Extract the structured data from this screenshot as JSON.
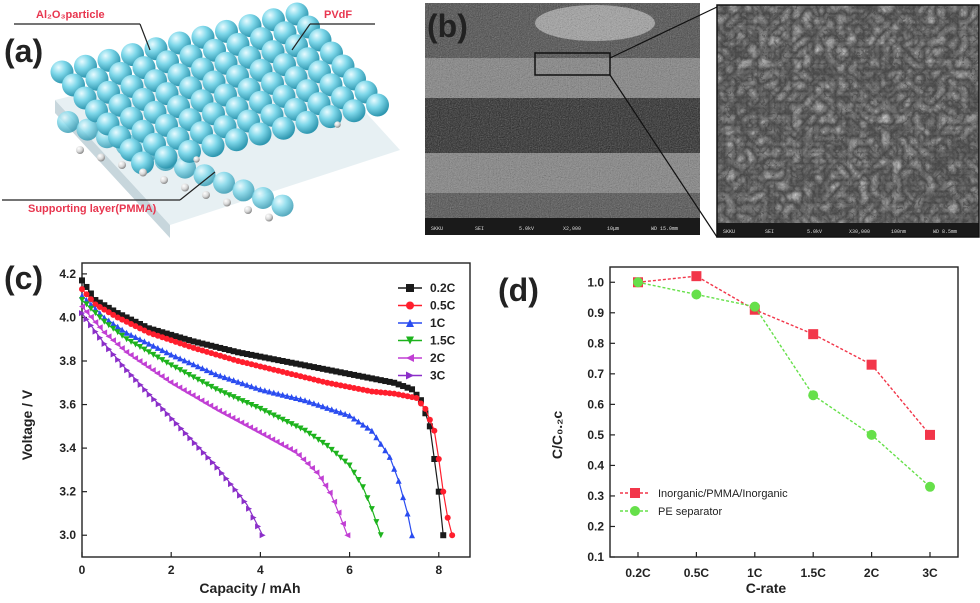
{
  "panel_a": {
    "label": "(a)",
    "annotations": [
      "Al₂O₃particle",
      "PVdF",
      "Supporting layer(PMMA)"
    ]
  },
  "panel_b": {
    "label": "(b)",
    "sem_info": [
      "SKKU",
      "SEI",
      "5.0kV",
      "X2,000",
      "10μm",
      "WD 15.0mm"
    ],
    "sem_info_zoom": [
      "SKKU",
      "SEI",
      "5.0kV",
      "X30,000",
      "100nm",
      "WD 8.5mm"
    ]
  },
  "colors": {
    "sphere": "#74d3e6",
    "membrane": "#dfe9ee",
    "accent": "#e8364f"
  },
  "chart_data": [
    {
      "type": "line",
      "panel_label": "(c)",
      "xlabel": "Capacity / mAh",
      "ylabel": "Voltage / V",
      "xlim": [
        0,
        8.7
      ],
      "ylim": [
        2.9,
        4.25
      ],
      "xticks": [
        "0",
        "2",
        "4",
        "6",
        "8"
      ],
      "yticks": [
        "3.0",
        "3.2",
        "3.4",
        "3.6",
        "3.8",
        "4.0",
        "4.2"
      ],
      "legend_position": "top-right",
      "series": [
        {
          "name": "0.2C",
          "color": "#1a1a1a",
          "marker": "square",
          "x": [
            0,
            0.3,
            0.8,
            1.5,
            2.5,
            3.5,
            4.5,
            5.5,
            6.5,
            7.0,
            7.4,
            7.6,
            7.8,
            7.9,
            8.0,
            8.05,
            8.1
          ],
          "y": [
            4.17,
            4.08,
            4.02,
            3.95,
            3.89,
            3.84,
            3.8,
            3.76,
            3.72,
            3.7,
            3.67,
            3.62,
            3.5,
            3.35,
            3.2,
            3.1,
            3.0
          ]
        },
        {
          "name": "0.5C",
          "color": "#ff1e2d",
          "marker": "circle",
          "x": [
            0,
            0.3,
            0.8,
            1.5,
            2.5,
            3.5,
            4.5,
            5.5,
            6.5,
            7.0,
            7.5,
            7.7,
            7.9,
            8.0,
            8.1,
            8.2,
            8.3
          ],
          "y": [
            4.13,
            4.06,
            4.0,
            3.93,
            3.86,
            3.8,
            3.75,
            3.7,
            3.66,
            3.65,
            3.63,
            3.58,
            3.48,
            3.35,
            3.2,
            3.08,
            3.0
          ]
        },
        {
          "name": "1C",
          "color": "#2a4cf0",
          "marker": "triangle-up",
          "x": [
            0,
            0.5,
            1.0,
            2.0,
            3.0,
            4.0,
            5.0,
            6.0,
            6.5,
            6.9,
            7.1,
            7.3,
            7.4
          ],
          "y": [
            4.1,
            4.0,
            3.93,
            3.83,
            3.74,
            3.67,
            3.62,
            3.55,
            3.48,
            3.36,
            3.25,
            3.1,
            3.0
          ]
        },
        {
          "name": "1.5C",
          "color": "#1db31d",
          "marker": "triangle-down",
          "x": [
            0,
            0.5,
            1.0,
            2.0,
            3.0,
            4.0,
            5.0,
            5.5,
            6.0,
            6.3,
            6.5,
            6.7
          ],
          "y": [
            4.08,
            3.98,
            3.9,
            3.78,
            3.67,
            3.58,
            3.48,
            3.41,
            3.32,
            3.22,
            3.12,
            3.0
          ]
        },
        {
          "name": "2C",
          "color": "#c13fd4",
          "marker": "triangle-left",
          "x": [
            0,
            0.5,
            1.0,
            2.0,
            3.0,
            4.0,
            4.8,
            5.3,
            5.6,
            5.8,
            5.95
          ],
          "y": [
            4.05,
            3.93,
            3.84,
            3.7,
            3.58,
            3.47,
            3.38,
            3.28,
            3.18,
            3.08,
            3.0
          ]
        },
        {
          "name": "3C",
          "color": "#8b2fc9",
          "marker": "triangle-right",
          "x": [
            0,
            0.5,
            1.0,
            1.5,
            2.0,
            2.5,
            3.0,
            3.4,
            3.7,
            3.9,
            4.05
          ],
          "y": [
            4.02,
            3.88,
            3.76,
            3.65,
            3.54,
            3.43,
            3.32,
            3.22,
            3.14,
            3.06,
            3.0
          ]
        }
      ]
    },
    {
      "type": "line",
      "panel_label": "(d)",
      "xlabel": "C-rate",
      "ylabel": "C/C₀.₂c",
      "categories": [
        "0.2C",
        "0.5C",
        "1C",
        "1.5C",
        "2C",
        "3C"
      ],
      "ylim": [
        0.1,
        1.05
      ],
      "yticks": [
        "0.1",
        "0.2",
        "0.3",
        "0.4",
        "0.5",
        "0.6",
        "0.7",
        "0.8",
        "0.9",
        "1.0"
      ],
      "legend_position": "bottom-left",
      "series": [
        {
          "name": "Inorganic/PMMA/Inorganic",
          "color": "#f2364a",
          "marker": "square",
          "values": [
            1.0,
            1.02,
            0.91,
            0.83,
            0.73,
            0.5
          ]
        },
        {
          "name": "PE separator",
          "color": "#66e04a",
          "marker": "circle",
          "values": [
            1.0,
            0.96,
            0.92,
            0.63,
            0.5,
            0.33
          ]
        }
      ]
    }
  ]
}
